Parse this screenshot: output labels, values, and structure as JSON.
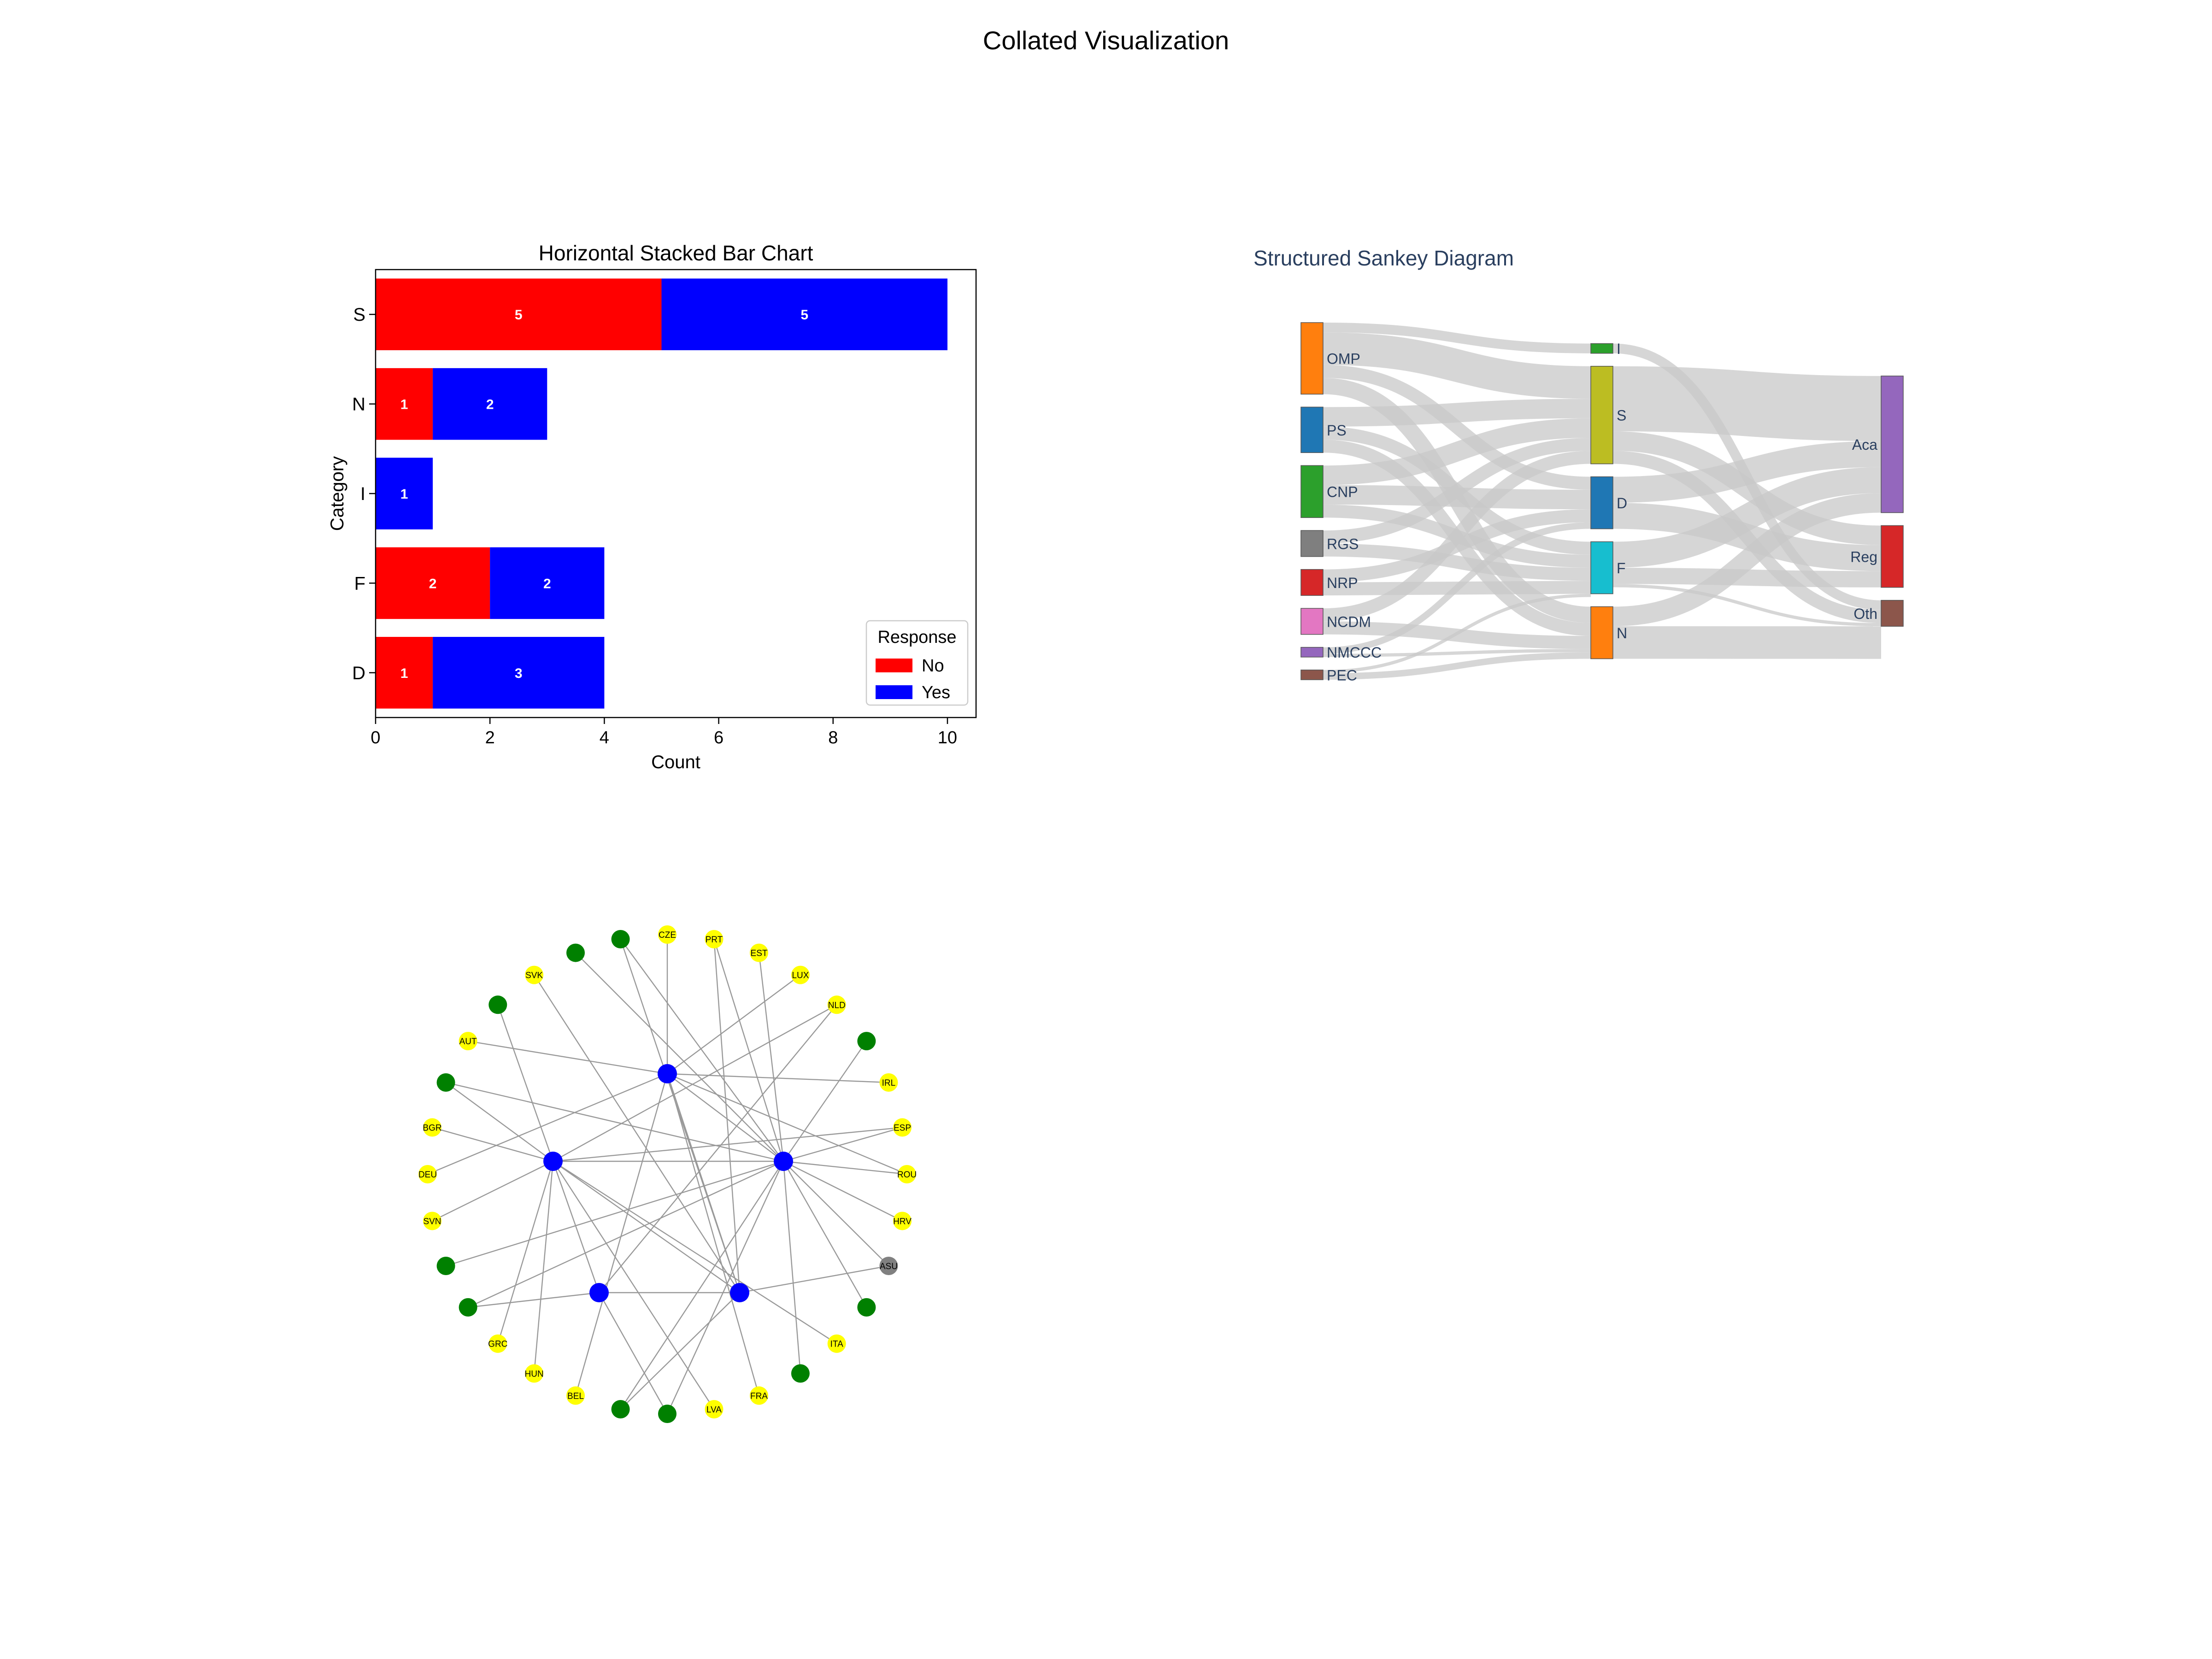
{
  "page": {
    "title": "Collated Visualization"
  },
  "chart_data": [
    {
      "type": "bar",
      "orientation": "horizontal",
      "stacked": true,
      "title": "Horizontal Stacked Bar Chart",
      "xlabel": "Count",
      "ylabel": "Category",
      "categories": [
        "D",
        "F",
        "I",
        "N",
        "S"
      ],
      "series": [
        {
          "name": "No",
          "color": "#ff0000",
          "values": [
            1,
            2,
            0,
            1,
            5
          ]
        },
        {
          "name": "Yes",
          "color": "#0000ff",
          "values": [
            3,
            2,
            1,
            2,
            5
          ]
        }
      ],
      "xlim": [
        0,
        10.5
      ],
      "xticks": [
        0,
        2,
        4,
        6,
        8,
        10
      ],
      "legend": {
        "title": "Response",
        "placement": "lower-right"
      },
      "grid": false
    },
    {
      "type": "sankey",
      "title": "Structured Sankey Diagram",
      "columns": [
        [
          {
            "name": "OMP",
            "color": "#ff7f0e",
            "value": 11
          },
          {
            "name": "PS",
            "color": "#1f77b4",
            "value": 7
          },
          {
            "name": "CNP",
            "color": "#2ca02c",
            "value": 8
          },
          {
            "name": "RGS",
            "color": "#7f7f7f",
            "value": 4
          },
          {
            "name": "NRP",
            "color": "#d62728",
            "value": 4
          },
          {
            "name": "NCDM",
            "color": "#e377c2",
            "value": 4
          },
          {
            "name": "NMCCC",
            "color": "#9467bd",
            "value": 1.5
          },
          {
            "name": "PEC",
            "color": "#8c564b",
            "value": 1.5
          }
        ],
        [
          {
            "name": "I",
            "color": "#2ca02c",
            "value": 1.5
          },
          {
            "name": "S",
            "color": "#bcbd22",
            "value": 15
          },
          {
            "name": "D",
            "color": "#1f77b4",
            "value": 8
          },
          {
            "name": "F",
            "color": "#17becf",
            "value": 8
          },
          {
            "name": "N",
            "color": "#ff7f0e",
            "value": 8
          }
        ],
        [
          {
            "name": "Aca",
            "color": "#9467bd",
            "value": 21
          },
          {
            "name": "Reg",
            "color": "#d62728",
            "value": 9.5
          },
          {
            "name": "Oth",
            "color": "#8c564b",
            "value": 4
          }
        ]
      ],
      "links": [
        {
          "source": "OMP",
          "target": "I",
          "value": 1.5
        },
        {
          "source": "OMP",
          "target": "S",
          "value": 5
        },
        {
          "source": "OMP",
          "target": "D",
          "value": 2
        },
        {
          "source": "OMP",
          "target": "N",
          "value": 2.5
        },
        {
          "source": "PS",
          "target": "S",
          "value": 3
        },
        {
          "source": "PS",
          "target": "F",
          "value": 2
        },
        {
          "source": "PS",
          "target": "N",
          "value": 2
        },
        {
          "source": "CNP",
          "target": "S",
          "value": 3
        },
        {
          "source": "CNP",
          "target": "D",
          "value": 3
        },
        {
          "source": "CNP",
          "target": "F",
          "value": 2
        },
        {
          "source": "RGS",
          "target": "S",
          "value": 2
        },
        {
          "source": "RGS",
          "target": "F",
          "value": 2
        },
        {
          "source": "NRP",
          "target": "D",
          "value": 2
        },
        {
          "source": "NRP",
          "target": "F",
          "value": 2
        },
        {
          "source": "NCDM",
          "target": "S",
          "value": 2
        },
        {
          "source": "NCDM",
          "target": "N",
          "value": 2
        },
        {
          "source": "NMCCC",
          "target": "D",
          "value": 1
        },
        {
          "source": "NMCCC",
          "target": "N",
          "value": 0.5
        },
        {
          "source": "PEC",
          "target": "F",
          "value": 0.5
        },
        {
          "source": "PEC",
          "target": "N",
          "value": 1
        },
        {
          "source": "I",
          "target": "Oth",
          "value": 1.5
        },
        {
          "source": "S",
          "target": "Aca",
          "value": 10
        },
        {
          "source": "S",
          "target": "Reg",
          "value": 3
        },
        {
          "source": "S",
          "target": "Oth",
          "value": 2
        },
        {
          "source": "D",
          "target": "Aca",
          "value": 4
        },
        {
          "source": "D",
          "target": "Reg",
          "value": 4
        },
        {
          "source": "F",
          "target": "Aca",
          "value": 4
        },
        {
          "source": "F",
          "target": "Reg",
          "value": 2.5
        },
        {
          "source": "F",
          "target": "Oth",
          "value": 0.5
        },
        {
          "source": "N",
          "target": "Aca",
          "value": 3
        },
        {
          "source": "N",
          "target": "Oth",
          "value": 5
        }
      ]
    },
    {
      "type": "network",
      "hubs": [
        "H1",
        "H2",
        "H3",
        "H4",
        "H5"
      ],
      "hub_color": "#0000ff",
      "node_colors": {
        "yellow": "#ffff00",
        "green": "#008000",
        "gray": "#808080"
      },
      "ring_nodes": [
        {
          "label": "CZE",
          "color": "yellow"
        },
        {
          "label": "PRT",
          "color": "yellow"
        },
        {
          "label": "EST",
          "color": "yellow"
        },
        {
          "label": "LUX",
          "color": "yellow"
        },
        {
          "label": "NLD",
          "color": "yellow"
        },
        {
          "label": "",
          "color": "green"
        },
        {
          "label": "IRL",
          "color": "yellow"
        },
        {
          "label": "ESP",
          "color": "yellow"
        },
        {
          "label": "ROU",
          "color": "yellow"
        },
        {
          "label": "HRV",
          "color": "yellow"
        },
        {
          "label": "ASU",
          "color": "gray"
        },
        {
          "label": "",
          "color": "green"
        },
        {
          "label": "ITA",
          "color": "yellow"
        },
        {
          "label": "",
          "color": "green"
        },
        {
          "label": "FRA",
          "color": "yellow"
        },
        {
          "label": "LVA",
          "color": "yellow"
        },
        {
          "label": "",
          "color": "green"
        },
        {
          "label": "",
          "color": "green"
        },
        {
          "label": "BEL",
          "color": "yellow"
        },
        {
          "label": "HUN",
          "color": "yellow"
        },
        {
          "label": "GRC",
          "color": "yellow"
        },
        {
          "label": "",
          "color": "green"
        },
        {
          "label": "",
          "color": "green"
        },
        {
          "label": "SVN",
          "color": "yellow"
        },
        {
          "label": "DEU",
          "color": "yellow"
        },
        {
          "label": "BGR",
          "color": "yellow"
        },
        {
          "label": "",
          "color": "green"
        },
        {
          "label": "AUT",
          "color": "yellow"
        },
        {
          "label": "",
          "color": "green"
        },
        {
          "label": "SVK",
          "color": "yellow"
        },
        {
          "label": "",
          "color": "green"
        },
        {
          "label": "",
          "color": "green"
        }
      ],
      "edges": [
        [
          "H1",
          0
        ],
        [
          "H1",
          3
        ],
        [
          "H1",
          6
        ],
        [
          "H1",
          14
        ],
        [
          "H1",
          18
        ],
        [
          "H1",
          24
        ],
        [
          "H1",
          27
        ],
        [
          "H1",
          8
        ],
        [
          "H2",
          4
        ],
        [
          "H2",
          7
        ],
        [
          "H2",
          25
        ],
        [
          "H2",
          26
        ],
        [
          "H2",
          20
        ],
        [
          "H2",
          23
        ],
        [
          "H2",
          19
        ],
        [
          "H2",
          15
        ],
        [
          "H2",
          28
        ],
        [
          "H2",
          12
        ],
        [
          "H3",
          1
        ],
        [
          "H3",
          2
        ],
        [
          "H3",
          5
        ],
        [
          "H3",
          7
        ],
        [
          "H3",
          8
        ],
        [
          "H3",
          9
        ],
        [
          "H3",
          10
        ],
        [
          "H3",
          11
        ],
        [
          "H3",
          13
        ],
        [
          "H3",
          17
        ],
        [
          "H3",
          22
        ],
        [
          "H3",
          26
        ],
        [
          "H3",
          30
        ],
        [
          "H3",
          31
        ],
        [
          "H3",
          16
        ],
        [
          "H3",
          21
        ],
        [
          "H4",
          4
        ],
        [
          "H4",
          16
        ],
        [
          "H4",
          21
        ],
        [
          "H5",
          1
        ],
        [
          "H5",
          10
        ],
        [
          "H5",
          29
        ],
        [
          "H5",
          31
        ],
        [
          "H5",
          17
        ],
        [
          "H1",
          "H3"
        ],
        [
          "H1",
          "H5"
        ],
        [
          "H2",
          "H3"
        ],
        [
          "H2",
          "H5"
        ],
        [
          "H4",
          "H5"
        ],
        [
          "H2",
          "H4"
        ]
      ]
    }
  ]
}
